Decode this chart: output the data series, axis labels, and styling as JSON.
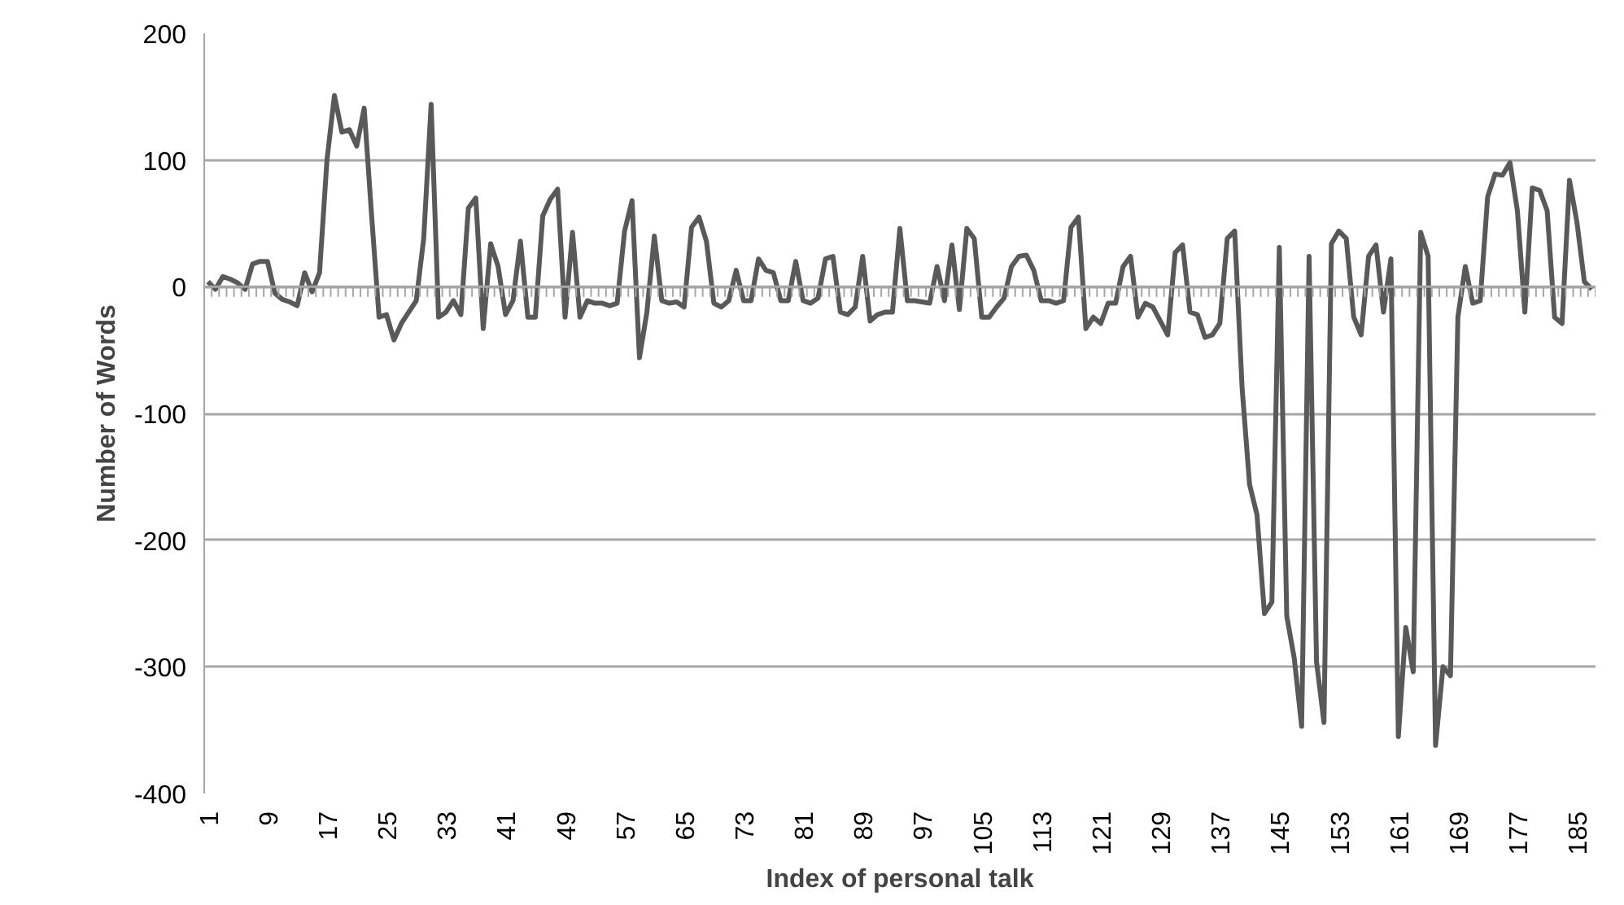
{
  "chart_data": {
    "type": "line",
    "xlabel": "Index of personal talk",
    "ylabel": "Number of Words",
    "categories": [
      "1",
      null,
      null,
      null,
      null,
      null,
      null,
      null,
      "9",
      null,
      null,
      null,
      null,
      null,
      null,
      null,
      "17",
      null,
      null,
      null,
      null,
      null,
      null,
      null,
      "25",
      null,
      null,
      null,
      null,
      null,
      null,
      null,
      "33",
      null,
      null,
      null,
      null,
      null,
      null,
      null,
      "41",
      null,
      null,
      null,
      null,
      null,
      null,
      null,
      "49",
      null,
      null,
      null,
      null,
      null,
      null,
      null,
      "57",
      null,
      null,
      null,
      null,
      null,
      null,
      null,
      "65",
      null,
      null,
      null,
      null,
      null,
      null,
      null,
      "73",
      null,
      null,
      null,
      null,
      null,
      null,
      null,
      "81",
      null,
      null,
      null,
      null,
      null,
      null,
      null,
      "89",
      null,
      null,
      null,
      null,
      null,
      null,
      null,
      "97",
      null,
      null,
      null,
      null,
      null,
      null,
      null,
      "105",
      null,
      null,
      null,
      null,
      null,
      null,
      null,
      "113",
      null,
      null,
      null,
      null,
      null,
      null,
      null,
      "121",
      null,
      null,
      null,
      null,
      null,
      null,
      null,
      "129",
      null,
      null,
      null,
      null,
      null,
      null,
      null,
      "137",
      null,
      null,
      null,
      null,
      null,
      null,
      null,
      "145",
      null,
      null,
      null,
      null,
      null,
      null,
      null,
      "153",
      null,
      null,
      null,
      null,
      null,
      null,
      null,
      "161",
      null,
      null,
      null,
      null,
      null,
      null,
      null,
      "169",
      null,
      null,
      null,
      null,
      null,
      null,
      null,
      "177",
      null,
      null,
      null,
      null,
      null,
      null,
      null,
      "185",
      null,
      null
    ],
    "values": [
      4,
      -2,
      8,
      6,
      3,
      -2,
      18,
      20,
      20,
      -5,
      -10,
      -12,
      -15,
      11,
      -4,
      11,
      100,
      151,
      122,
      124,
      111,
      141,
      56,
      -24,
      -22,
      -42,
      -29,
      -20,
      -11,
      38,
      144,
      -24,
      -20,
      -11,
      -22,
      62,
      70,
      -33,
      34,
      16,
      -22,
      -11,
      36,
      -24,
      -24,
      56,
      69,
      77,
      -24,
      43,
      -24,
      -11,
      -13,
      -13,
      -15,
      -13,
      44,
      68,
      -56,
      -20,
      40,
      -11,
      -13,
      -12,
      -16,
      47,
      55,
      36,
      -13,
      -16,
      -11,
      13,
      -11,
      -11,
      22,
      13,
      11,
      -11,
      -11,
      20,
      -11,
      -13,
      -9,
      22,
      24,
      -20,
      -22,
      -16,
      24,
      -27,
      -22,
      -20,
      -20,
      46,
      -11,
      -11,
      -12,
      -13,
      16,
      -11,
      33,
      -18,
      46,
      38,
      -24,
      -24,
      -16,
      -9,
      16,
      24,
      25,
      13,
      -11,
      -11,
      -13,
      -11,
      47,
      55,
      -33,
      -24,
      -29,
      -13,
      -13,
      16,
      24,
      -24,
      -13,
      -16,
      -27,
      -38,
      27,
      33,
      -20,
      -22,
      -40,
      -38,
      -29,
      38,
      44,
      -80,
      -156,
      -180,
      -258,
      -249,
      31,
      -260,
      -293,
      -347,
      24,
      -296,
      -344,
      34,
      44,
      38,
      -24,
      -38,
      24,
      33,
      -20,
      22,
      -355,
      -269,
      -304,
      43,
      24,
      -362,
      -300,
      -307,
      -24,
      16,
      -13,
      -11,
      71,
      89,
      88,
      98,
      60,
      -20,
      78,
      76,
      60,
      -24,
      -29,
      84,
      51,
      4,
      -2
    ],
    "color": "#595959",
    "ylim": [
      -400,
      200
    ],
    "yticks": [
      -400,
      -300,
      -200,
      -100,
      0,
      100,
      200
    ],
    "grid": "y"
  }
}
